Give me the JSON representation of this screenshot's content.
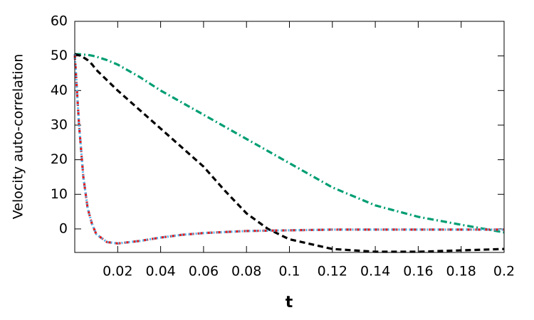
{
  "chart_data": {
    "type": "line",
    "y_label": "Velocity auto-correlation",
    "x_label": "t",
    "xlim": [
      0,
      0.2
    ],
    "ylim": [
      -6.8,
      60
    ],
    "xticks": [
      0.02,
      0.04,
      0.06,
      0.08,
      0.1,
      0.12,
      0.14,
      0.16,
      0.18,
      0.2
    ],
    "yticks": [
      0,
      10,
      20,
      30,
      40,
      50,
      60
    ],
    "grid": false,
    "x": [
      0,
      0.002,
      0.004,
      0.006,
      0.008,
      0.01,
      0.015,
      0.02,
      0.03,
      0.04,
      0.05,
      0.06,
      0.07,
      0.08,
      0.09,
      0.1,
      0.12,
      0.14,
      0.16,
      0.18,
      0.2
    ],
    "series": [
      {
        "color": "#009e73",
        "dash": "dashdot",
        "values": [
          50.5,
          50.5,
          50.4,
          50.3,
          50.1,
          49.8,
          48.8,
          47.5,
          44,
          40,
          36.5,
          33,
          29.5,
          26,
          22.5,
          19,
          12,
          6.8,
          3.5,
          1.2,
          -1
        ]
      },
      {
        "color": "#000000",
        "dash": "dashed",
        "values": [
          50.5,
          50.2,
          49.6,
          48.8,
          47.6,
          46,
          43,
          40,
          34.5,
          29,
          23.5,
          18,
          11,
          4.5,
          0,
          -3,
          -5.8,
          -6.6,
          -6.6,
          -6.2,
          -5.8
        ]
      },
      {
        "color": "#e41a1c",
        "dash": "dashed",
        "values": [
          50.5,
          30,
          15,
          6,
          1.5,
          -1.5,
          -3.8,
          -4.2,
          -3.5,
          -2.5,
          -1.7,
          -1.2,
          -0.9,
          -0.6,
          -0.5,
          -0.4,
          -0.2,
          -0.2,
          -0.2,
          -0.2,
          -0.2
        ]
      },
      {
        "color": "#56b4e9",
        "dash": "dotted",
        "values": [
          50.5,
          30,
          15,
          6,
          1.5,
          -1.5,
          -3.8,
          -4.2,
          -3.5,
          -2.5,
          -1.7,
          -1.2,
          -0.9,
          -0.6,
          -0.5,
          -0.4,
          -0.2,
          -0.2,
          -0.2,
          -0.2,
          -0.2
        ]
      }
    ]
  }
}
